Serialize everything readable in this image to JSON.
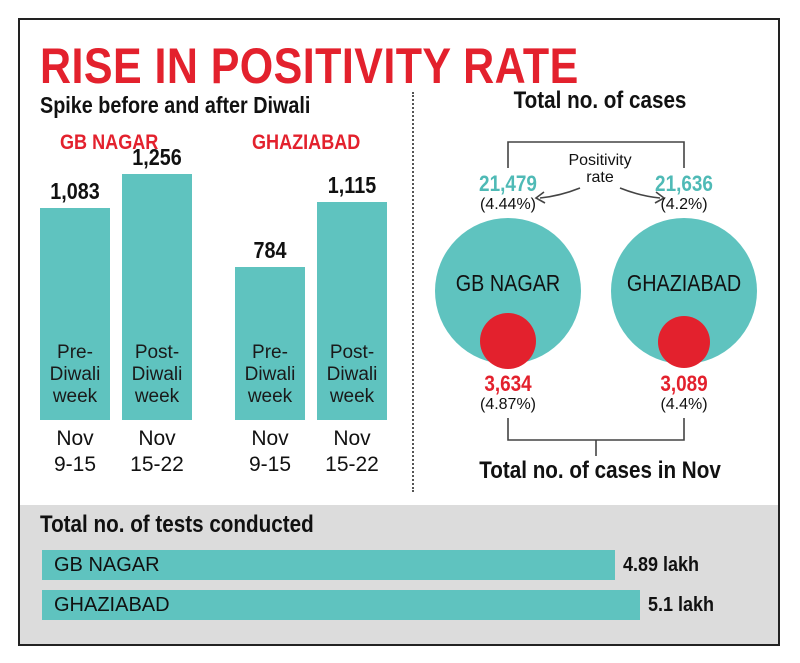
{
  "title": "RISE IN POSITIVITY RATE",
  "colors": {
    "accent_red": "#e3212d",
    "teal": "#5fc3bf",
    "panel_gray": "#dcdcdc"
  },
  "chart_data": [
    {
      "type": "bar",
      "title": "Spike before and after Diwali",
      "groups": [
        {
          "name": "GB NAGAR",
          "bars": [
            {
              "value_label": "1,083",
              "value": 1083,
              "caption": [
                "Pre-",
                "Diwali",
                "week"
              ],
              "date": [
                "Nov",
                "9-15"
              ]
            },
            {
              "value_label": "1,256",
              "value": 1256,
              "caption": [
                "Post-",
                "Diwali",
                "week"
              ],
              "date": [
                "Nov",
                "15-22"
              ]
            }
          ]
        },
        {
          "name": "GHAZIABAD",
          "bars": [
            {
              "value_label": "784",
              "value": 784,
              "caption": [
                "Pre-",
                "Diwali",
                "week"
              ],
              "date": [
                "Nov",
                "9-15"
              ]
            },
            {
              "value_label": "1,115",
              "value": 1115,
              "caption": [
                "Post-",
                "Diwali",
                "week"
              ],
              "date": [
                "Nov",
                "15-22"
              ]
            }
          ]
        }
      ],
      "grid": false,
      "legend": "none"
    },
    {
      "type": "bubble",
      "top_label": "Total no. of cases",
      "bottom_label": "Total no. of cases in Nov",
      "positivity_label": [
        "Positivity",
        "rate"
      ],
      "districts": [
        {
          "name": "GB NAGAR",
          "total_cases": "21,479",
          "total_rate": "(4.44%)",
          "nov_cases": "3,634",
          "nov_rate": "(4.87%)"
        },
        {
          "name": "GHAZIABAD",
          "total_cases": "21,636",
          "total_rate": "(4.2%)",
          "nov_cases": "3,089",
          "nov_rate": "(4.4%)"
        }
      ]
    },
    {
      "type": "bar",
      "orientation": "horizontal",
      "title": "Total no. of tests conducted",
      "unit": "lakh",
      "bars": [
        {
          "name": "GB NAGAR",
          "value": 4.89,
          "value_label": "4.89 lakh"
        },
        {
          "name": "GHAZIABAD",
          "value": 5.1,
          "value_label": "5.1 lakh"
        }
      ]
    }
  ]
}
